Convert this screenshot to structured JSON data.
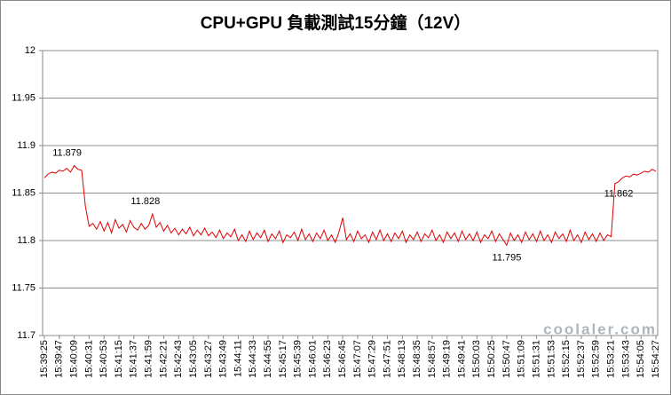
{
  "chart_data": {
    "type": "line",
    "title": "CPU+GPU 負載測試15分鐘（12V）",
    "watermark": "coolaler.com",
    "color": "#e00000",
    "grid": true,
    "ylim": [
      11.7,
      12
    ],
    "yticks": [
      11.7,
      11.75,
      11.8,
      11.85,
      11.9,
      11.95,
      12
    ],
    "categories": [
      "15:39:25",
      null,
      null,
      null,
      "15:39:47",
      null,
      null,
      null,
      "15:40:09",
      null,
      null,
      null,
      "15:40:31",
      null,
      null,
      null,
      "15:40:53",
      null,
      null,
      null,
      "15:41:15",
      null,
      null,
      null,
      "15:41:37",
      null,
      null,
      null,
      "15:41:59",
      null,
      null,
      null,
      "15:42:21",
      null,
      null,
      null,
      "15:42:43",
      null,
      null,
      null,
      "15:43:05",
      null,
      null,
      null,
      "15:43:27",
      null,
      null,
      null,
      "15:43:49",
      null,
      null,
      null,
      "15:44:11",
      null,
      null,
      null,
      "15:44:33",
      null,
      null,
      null,
      "15:44:55",
      null,
      null,
      null,
      "15:45:17",
      null,
      null,
      null,
      "15:45:39",
      null,
      null,
      null,
      "15:46:01",
      null,
      null,
      null,
      "15:46:23",
      null,
      null,
      null,
      "15:46:45",
      null,
      null,
      null,
      "15:47:07",
      null,
      null,
      null,
      "15:47:29",
      null,
      null,
      null,
      "15:47:51",
      null,
      null,
      null,
      "15:48:13",
      null,
      null,
      null,
      "15:48:35",
      null,
      null,
      null,
      "15:48:57",
      null,
      null,
      null,
      "15:49:19",
      null,
      null,
      null,
      "15:49:41",
      null,
      null,
      null,
      "15:50:03",
      null,
      null,
      null,
      "15:50:25",
      null,
      null,
      null,
      "15:50:47",
      null,
      null,
      null,
      "15:51:09",
      null,
      null,
      null,
      "15:51:31",
      null,
      null,
      null,
      "15:51:53",
      null,
      null,
      null,
      "15:52:15",
      null,
      null,
      null,
      "15:52:37",
      null,
      null,
      null,
      "15:52:59",
      null,
      null,
      null,
      "15:53:21",
      null,
      null,
      null,
      "15:53:43",
      null,
      null,
      null,
      "15:54:05",
      null,
      null,
      null,
      "15:54:27"
    ],
    "values": [
      11.866,
      11.87,
      11.872,
      11.871,
      11.874,
      11.873,
      11.876,
      11.872,
      11.879,
      11.875,
      11.874,
      11.836,
      11.815,
      11.818,
      11.812,
      11.82,
      11.81,
      11.819,
      11.808,
      11.822,
      11.813,
      11.817,
      11.809,
      11.821,
      11.814,
      11.811,
      11.818,
      11.812,
      11.816,
      11.828,
      11.814,
      11.819,
      11.81,
      11.816,
      11.808,
      11.813,
      11.806,
      11.812,
      11.807,
      11.814,
      11.805,
      11.811,
      11.806,
      11.813,
      11.805,
      11.809,
      11.803,
      11.811,
      11.802,
      11.808,
      11.804,
      11.812,
      11.8,
      11.806,
      11.799,
      11.81,
      11.801,
      11.808,
      11.803,
      11.811,
      11.799,
      11.807,
      11.802,
      11.81,
      11.798,
      11.806,
      11.803,
      11.809,
      11.8,
      11.812,
      11.801,
      11.807,
      11.799,
      11.808,
      11.802,
      11.811,
      11.8,
      11.806,
      11.798,
      11.809,
      11.824,
      11.801,
      11.807,
      11.799,
      11.81,
      11.802,
      11.806,
      11.798,
      11.809,
      11.801,
      11.811,
      11.8,
      11.807,
      11.799,
      11.808,
      11.802,
      11.81,
      11.798,
      11.806,
      11.801,
      11.809,
      11.799,
      11.807,
      11.803,
      11.811,
      11.8,
      11.806,
      11.798,
      11.809,
      11.802,
      11.808,
      11.799,
      11.81,
      11.801,
      11.807,
      11.8,
      11.809,
      11.798,
      11.806,
      11.802,
      11.81,
      11.799,
      11.807,
      11.801,
      11.795,
      11.808,
      11.8,
      11.806,
      11.798,
      11.809,
      11.801,
      11.807,
      11.799,
      11.81,
      11.8,
      11.806,
      11.798,
      11.809,
      11.802,
      11.807,
      11.799,
      11.811,
      11.8,
      11.806,
      11.798,
      11.809,
      11.801,
      11.807,
      11.799,
      11.808,
      11.8,
      11.806,
      11.804,
      11.86,
      11.862,
      11.866,
      11.868,
      11.867,
      11.87,
      11.869,
      11.871,
      11.873,
      11.872,
      11.875,
      11.873
    ],
    "value_labels": [
      null,
      null,
      null,
      null,
      null,
      null,
      null,
      null,
      "11.879",
      null,
      null,
      null,
      null,
      null,
      null,
      null,
      null,
      null,
      null,
      null,
      null,
      null,
      null,
      null,
      null,
      null,
      null,
      null,
      null,
      "11.828",
      null,
      null,
      null,
      null,
      null,
      null,
      null,
      null,
      null,
      null,
      null,
      null,
      null,
      null,
      null,
      null,
      null,
      null,
      null,
      null,
      null,
      null,
      null,
      null,
      null,
      null,
      null,
      null,
      null,
      null,
      null,
      null,
      null,
      null,
      null,
      null,
      null,
      null,
      null,
      null,
      null,
      null,
      null,
      null,
      null,
      null,
      null,
      null,
      null,
      null,
      null,
      null,
      null,
      null,
      null,
      null,
      null,
      null,
      null,
      null,
      null,
      null,
      null,
      null,
      null,
      null,
      null,
      null,
      null,
      null,
      null,
      null,
      null,
      null,
      null,
      null,
      null,
      null,
      null,
      null,
      null,
      null,
      null,
      null,
      null,
      null,
      null,
      null,
      null,
      null,
      null,
      null,
      null,
      null,
      "11.795",
      null,
      null,
      null,
      null,
      null,
      null,
      null,
      null,
      null,
      null,
      null,
      null,
      null,
      null,
      null,
      null,
      null,
      null,
      null,
      null,
      null,
      null,
      null,
      null,
      null,
      null,
      null,
      null,
      null,
      "11.862",
      null,
      null,
      null,
      null,
      null,
      null,
      null,
      null,
      null,
      null
    ]
  }
}
